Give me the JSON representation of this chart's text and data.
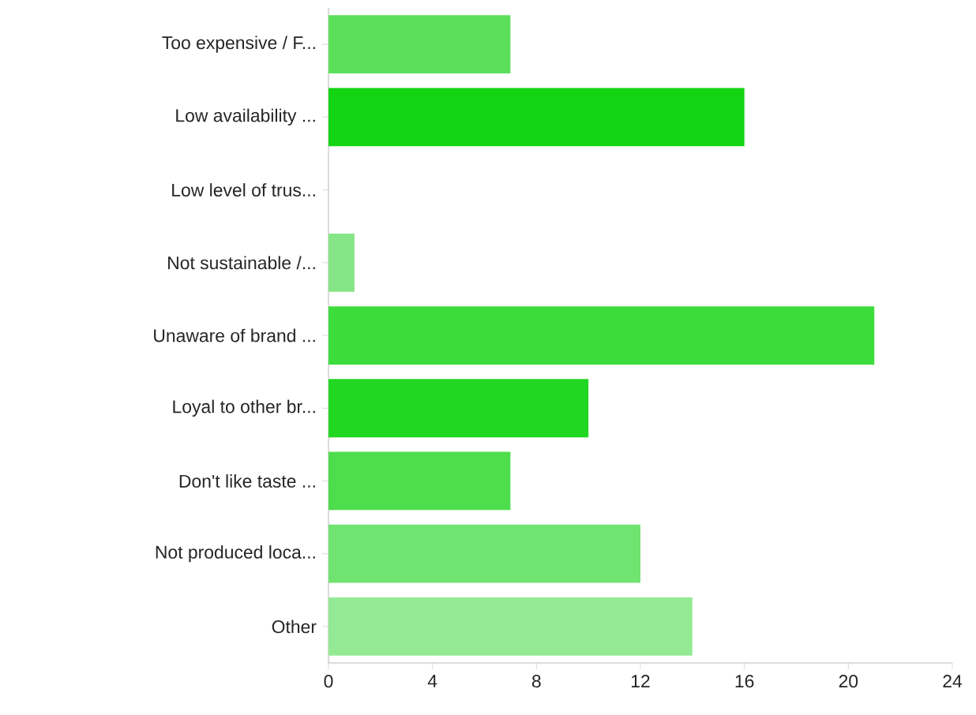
{
  "chart_data": {
    "type": "bar",
    "orientation": "horizontal",
    "categories": [
      "Too expensive / F...",
      "Low availability ...",
      "Low level of trus...",
      "Not sustainable /...",
      "Unaware of brand ...",
      "Loyal to other br...",
      "Don't like taste ...",
      "Not produced loca...",
      "Other"
    ],
    "values": [
      7,
      16,
      0,
      1,
      21,
      10,
      7,
      12,
      14
    ],
    "colors": [
      "#5ce05c",
      "#12d412",
      "#7de37d",
      "#86e586",
      "#3cdc3c",
      "#22d722",
      "#4ddd4d",
      "#70e370",
      "#94ea94"
    ],
    "xlim": [
      0,
      24
    ],
    "xticks": [
      0,
      4,
      8,
      12,
      16,
      20,
      24
    ],
    "grid": false
  }
}
